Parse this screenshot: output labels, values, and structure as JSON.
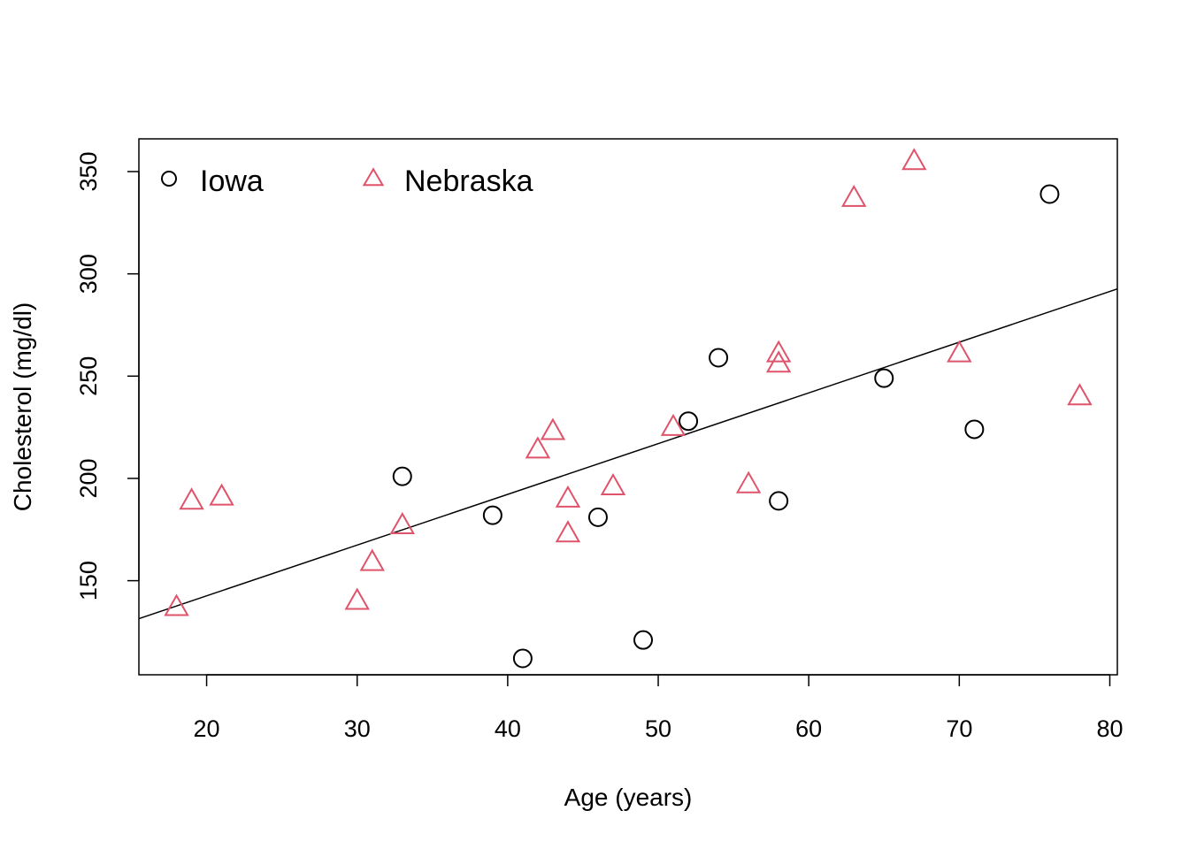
{
  "chart_data": {
    "type": "scatter",
    "title": "",
    "xlabel": "Age (years)",
    "ylabel": "Cholesterol (mg/dl)",
    "xlim": [
      15.5,
      80.5
    ],
    "ylim": [
      104,
      366
    ],
    "xticks": [
      20,
      30,
      40,
      50,
      60,
      70,
      80
    ],
    "yticks": [
      150,
      200,
      250,
      300,
      350
    ],
    "legend": {
      "position": "top-left",
      "entries": [
        {
          "label": "Iowa",
          "marker": "circle",
          "color": "#000000"
        },
        {
          "label": "Nebraska",
          "marker": "triangle",
          "color": "#DF536B"
        }
      ]
    },
    "series": [
      {
        "name": "Iowa",
        "marker": "circle",
        "color": "#000000",
        "points": [
          {
            "x": 33,
            "y": 201
          },
          {
            "x": 39,
            "y": 182
          },
          {
            "x": 41,
            "y": 112
          },
          {
            "x": 46,
            "y": 181
          },
          {
            "x": 49,
            "y": 121
          },
          {
            "x": 52,
            "y": 228
          },
          {
            "x": 54,
            "y": 259
          },
          {
            "x": 58,
            "y": 189
          },
          {
            "x": 65,
            "y": 249
          },
          {
            "x": 71,
            "y": 224
          },
          {
            "x": 76,
            "y": 339
          }
        ]
      },
      {
        "name": "Nebraska",
        "marker": "triangle",
        "color": "#DF536B",
        "points": [
          {
            "x": 18,
            "y": 137
          },
          {
            "x": 19,
            "y": 189
          },
          {
            "x": 21,
            "y": 191
          },
          {
            "x": 30,
            "y": 140
          },
          {
            "x": 31,
            "y": 159
          },
          {
            "x": 33,
            "y": 177
          },
          {
            "x": 42,
            "y": 214
          },
          {
            "x": 43,
            "y": 223
          },
          {
            "x": 44,
            "y": 173
          },
          {
            "x": 44,
            "y": 190
          },
          {
            "x": 47,
            "y": 196
          },
          {
            "x": 51,
            "y": 225
          },
          {
            "x": 56,
            "y": 197
          },
          {
            "x": 58,
            "y": 256
          },
          {
            "x": 58,
            "y": 261
          },
          {
            "x": 63,
            "y": 337
          },
          {
            "x": 67,
            "y": 355
          },
          {
            "x": 70,
            "y": 261
          },
          {
            "x": 78,
            "y": 240
          }
        ]
      }
    ],
    "regression_line": {
      "intercept": 93.0,
      "slope": 2.48
    }
  }
}
